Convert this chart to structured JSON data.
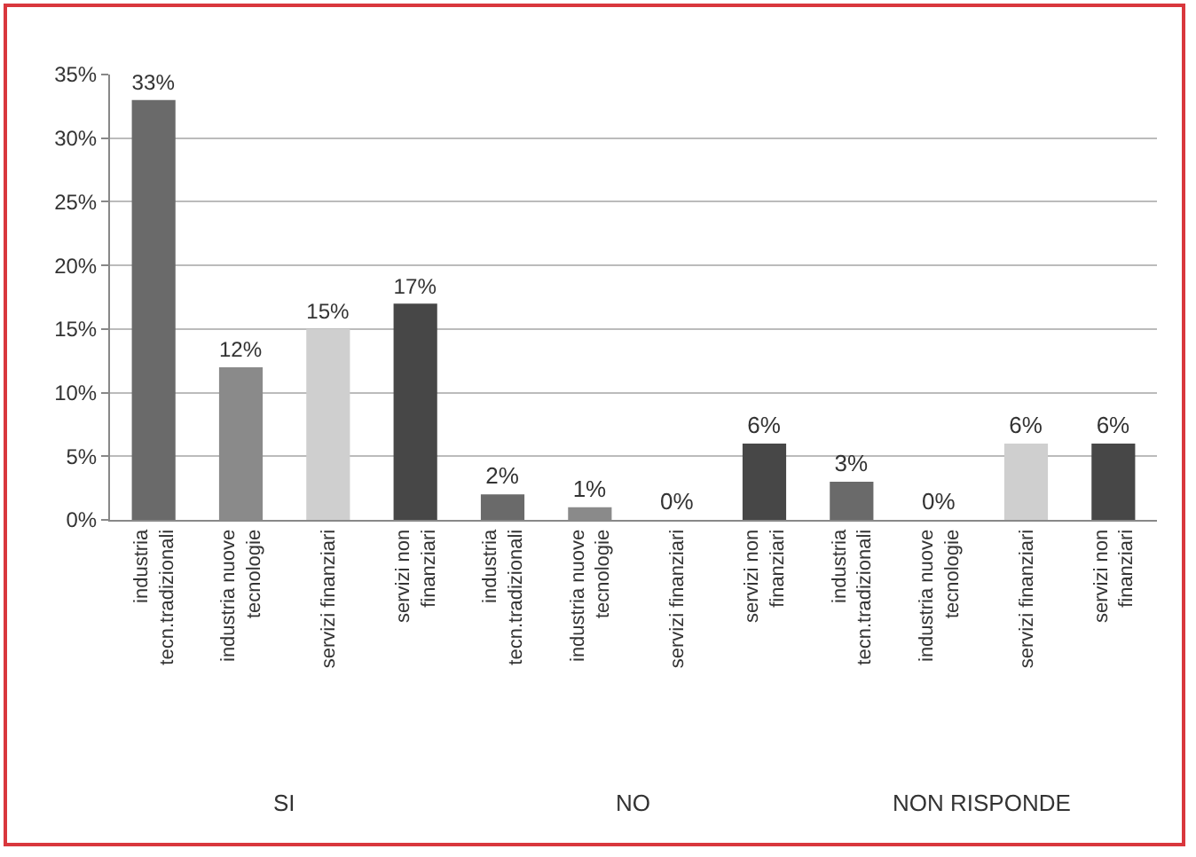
{
  "chart_data": {
    "type": "bar",
    "categories": [
      "industria tecn.tradizionali",
      "industria nuove tecnologie",
      "servizi finanziari",
      "servizi non finanziari",
      "industria tecn.tradizionali",
      "industria nuove tecnologie",
      "servizi finanziari",
      "servizi non finanziari",
      "industria tecn.tradizionali",
      "industria nuove tecnologie",
      "servizi finanziari",
      "servizi non finanziari"
    ],
    "values": [
      33,
      12,
      15,
      17,
      2,
      1,
      0,
      6,
      3,
      0,
      6,
      6
    ],
    "value_labels": [
      "33%",
      "12%",
      "15%",
      "17%",
      "2%",
      "1%",
      "0%",
      "6%",
      "3%",
      "0%",
      "6%",
      "6%"
    ],
    "colors": [
      "#6a6a6a",
      "#8a8a8a",
      "#cfcfcf",
      "#474747",
      "#6a6a6a",
      "#8a8a8a",
      "#cfcfcf",
      "#474747",
      "#6a6a6a",
      "#8a8a8a",
      "#cfcfcf",
      "#474747"
    ],
    "annotations": [
      "SI",
      "NO",
      "NON RISPONDE"
    ],
    "ylim": [
      0,
      35
    ],
    "yticks": [
      {
        "value": 0,
        "label": "0%"
      },
      {
        "value": 5,
        "label": "5%"
      },
      {
        "value": 10,
        "label": "10%"
      },
      {
        "value": 15,
        "label": "15%"
      },
      {
        "value": 20,
        "label": "20%"
      },
      {
        "value": 25,
        "label": "25%"
      },
      {
        "value": 30,
        "label": "30%"
      },
      {
        "value": 35,
        "label": "35%"
      }
    ],
    "grid": "y"
  }
}
